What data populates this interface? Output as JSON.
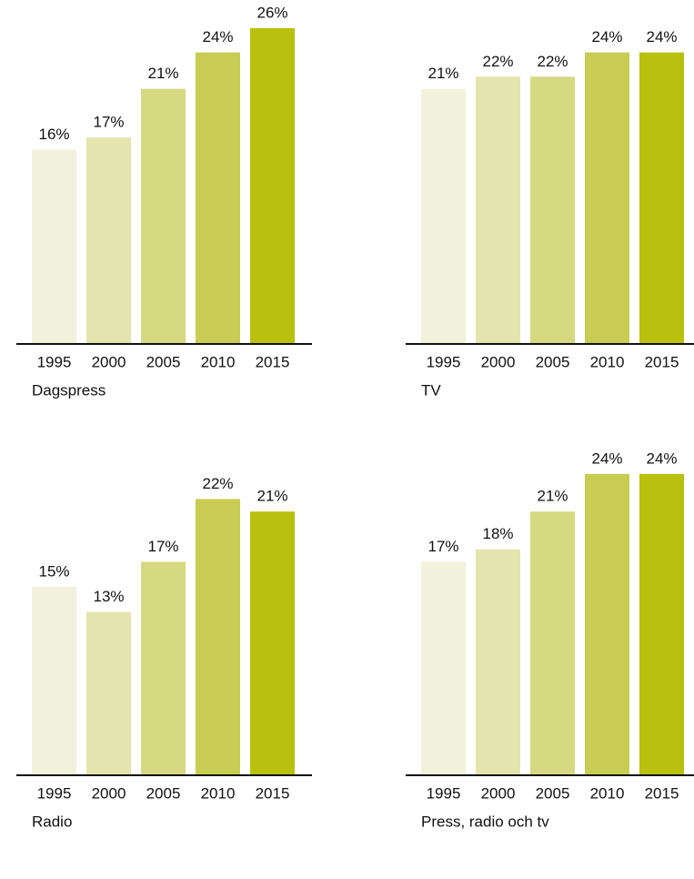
{
  "chart_data": [
    {
      "type": "bar",
      "title": "Dagspress",
      "categories": [
        "1995",
        "2000",
        "2005",
        "2010",
        "2015"
      ],
      "values": [
        16,
        17,
        21,
        24,
        26
      ],
      "value_labels": [
        "16%",
        "17%",
        "21%",
        "24%",
        "26%"
      ],
      "colors": [
        "#f2f2dc",
        "#e4e4ae",
        "#d6d882",
        "#c8cc52",
        "#b9c00e"
      ]
    },
    {
      "type": "bar",
      "title": "TV",
      "categories": [
        "1995",
        "2000",
        "2005",
        "2010",
        "2015"
      ],
      "values": [
        21,
        22,
        22,
        24,
        24
      ],
      "value_labels": [
        "21%",
        "22%",
        "22%",
        "24%",
        "24%"
      ],
      "colors": [
        "#f2f2dc",
        "#e4e4ae",
        "#d6d882",
        "#c8cc52",
        "#b9c00e"
      ]
    },
    {
      "type": "bar",
      "title": "Radio",
      "categories": [
        "1995",
        "2000",
        "2005",
        "2010",
        "2015"
      ],
      "values": [
        15,
        13,
        17,
        22,
        21
      ],
      "value_labels": [
        "15%",
        "13%",
        "17%",
        "22%",
        "21%"
      ],
      "colors": [
        "#f2f2dc",
        "#e4e4ae",
        "#d6d882",
        "#c8cc52",
        "#b9c00e"
      ]
    },
    {
      "type": "bar",
      "title": "Press, radio och tv",
      "categories": [
        "1995",
        "2000",
        "2005",
        "2010",
        "2015"
      ],
      "values": [
        17,
        18,
        21,
        24,
        24
      ],
      "value_labels": [
        "17%",
        "18%",
        "21%",
        "24%",
        "24%"
      ],
      "colors": [
        "#f2f2dc",
        "#e4e4ae",
        "#d6d882",
        "#c8cc52",
        "#b9c00e"
      ]
    }
  ]
}
